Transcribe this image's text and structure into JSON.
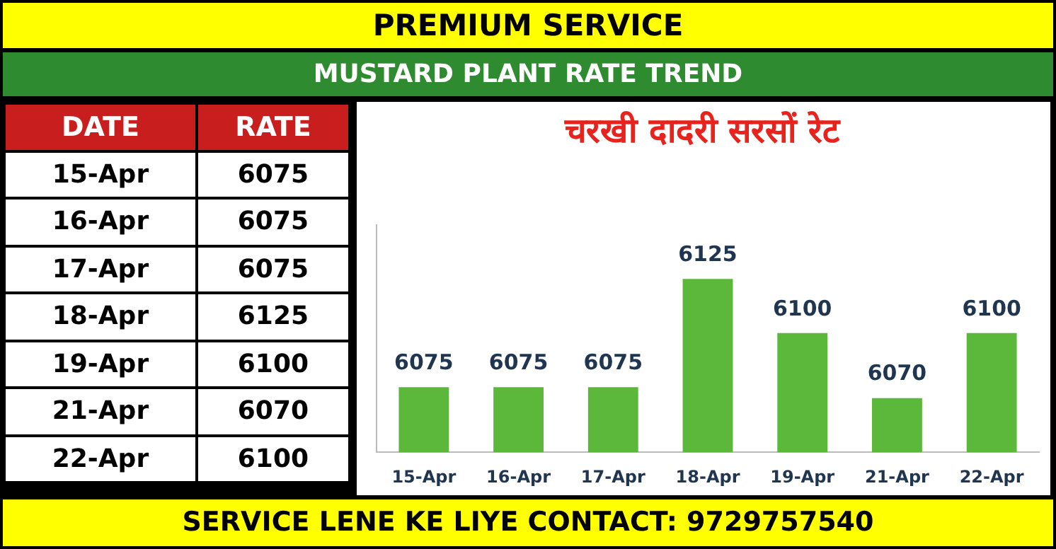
{
  "chart_data": [
    {
      "type": "other",
      "annotations": [
        "DATE",
        "RATE",
        "15-Apr",
        "6075",
        "16-Apr",
        "6075",
        "17-Apr",
        "6075",
        "18-Apr",
        "6125",
        "19-Apr",
        "6100",
        "21-Apr",
        "6070",
        "22-Apr",
        "6100"
      ]
    },
    {
      "type": "bar",
      "title": "चरखी दादरी सरसों रेट",
      "subtitle": "MUSTARD PLANT RATE TREND",
      "categories": [
        "15-Apr",
        "16-Apr",
        "17-Apr",
        "18-Apr",
        "19-Apr",
        "21-Apr",
        "22-Apr"
      ],
      "values": [
        6075,
        6075,
        6075,
        6125,
        6100,
        6070,
        6100
      ],
      "color": "#5cb83a",
      "ylim": [
        6045,
        6150
      ],
      "data_labels": true,
      "tick_labels": "x",
      "annotations": [
        "PREMIUM SERVICE",
        "SERVICE LENE KE LIYE CONTACT: 9729757540"
      ]
    }
  ]
}
